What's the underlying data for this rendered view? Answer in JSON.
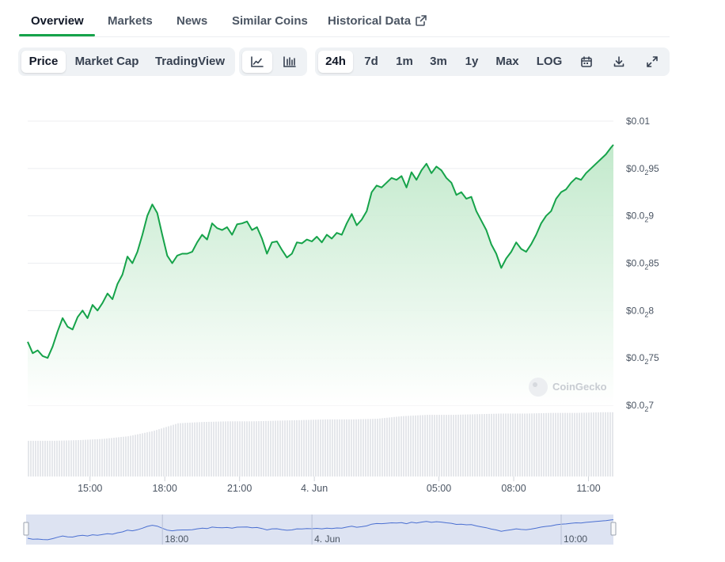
{
  "tabs": [
    {
      "label": "Overview"
    },
    {
      "label": "Markets"
    },
    {
      "label": "News"
    },
    {
      "label": "Similar Coins"
    },
    {
      "label": "Historical Data",
      "external": true
    }
  ],
  "chart_types": [
    {
      "label": "Price",
      "active": true
    },
    {
      "label": "Market Cap"
    },
    {
      "label": "TradingView"
    }
  ],
  "chart_styles": [
    {
      "icon": "line-chart-icon",
      "active": true
    },
    {
      "icon": "candlestick-chart-icon"
    }
  ],
  "ranges": [
    {
      "label": "24h",
      "active": true
    },
    {
      "label": "7d"
    },
    {
      "label": "1m"
    },
    {
      "label": "3m"
    },
    {
      "label": "1y"
    },
    {
      "label": "Max"
    },
    {
      "label": "LOG"
    }
  ],
  "range_tools": [
    {
      "icon": "calendar-icon"
    },
    {
      "icon": "download-icon"
    },
    {
      "icon": "fullscreen-icon"
    }
  ],
  "watermark": "CoinGecko",
  "colors": {
    "line": "#16a34a",
    "area_top": "#bfe8c9",
    "volume": "#e5e7eb",
    "navigator_bg": "#dde3f2",
    "navigator_line": "#4a6fd1"
  },
  "chart_data": {
    "type": "area",
    "y_tick_labels": [
      {
        "value": 0.01,
        "prefix": "$0.0",
        "sub": "",
        "suffix": "1"
      },
      {
        "value": 0.00995,
        "prefix": "$0.0",
        "sub": "2",
        "suffix": "95"
      },
      {
        "value": 0.0099,
        "prefix": "$0.0",
        "sub": "2",
        "suffix": "9"
      },
      {
        "value": 0.00985,
        "prefix": "$0.0",
        "sub": "2",
        "suffix": "85"
      },
      {
        "value": 0.0098,
        "prefix": "$0.0",
        "sub": "2",
        "suffix": "8"
      },
      {
        "value": 0.00975,
        "prefix": "$0.0",
        "sub": "2",
        "suffix": "75"
      },
      {
        "value": 0.0097,
        "prefix": "$0.0",
        "sub": "2",
        "suffix": "7"
      }
    ],
    "ylim": [
      0.0097,
      0.01
    ],
    "x_tick_labels": [
      {
        "label": "15:00",
        "hours": 2.5
      },
      {
        "label": "18:00",
        "hours": 5.5
      },
      {
        "label": "21:00",
        "hours": 8.5
      },
      {
        "label": "4. Jun",
        "hours": 11.5
      },
      {
        "label": "05:00",
        "hours": 16.5
      },
      {
        "label": "08:00",
        "hours": 19.5
      },
      {
        "label": "11:00",
        "hours": 22.5
      }
    ],
    "x_unit": "hours since start of window",
    "xlim": [
      0,
      23.5
    ],
    "price_series": [
      [
        0.0,
        0.009767
      ],
      [
        0.2,
        0.009755
      ],
      [
        0.4,
        0.009758
      ],
      [
        0.6,
        0.009752
      ],
      [
        0.8,
        0.00975
      ],
      [
        1.0,
        0.009762
      ],
      [
        1.2,
        0.009778
      ],
      [
        1.4,
        0.009792
      ],
      [
        1.6,
        0.009783
      ],
      [
        1.8,
        0.00978
      ],
      [
        2.0,
        0.009793
      ],
      [
        2.2,
        0.0098
      ],
      [
        2.4,
        0.009792
      ],
      [
        2.6,
        0.009806
      ],
      [
        2.8,
        0.0098
      ],
      [
        3.0,
        0.009808
      ],
      [
        3.2,
        0.009818
      ],
      [
        3.4,
        0.009812
      ],
      [
        3.6,
        0.009828
      ],
      [
        3.8,
        0.009838
      ],
      [
        4.0,
        0.009857
      ],
      [
        4.2,
        0.00985
      ],
      [
        4.4,
        0.009862
      ],
      [
        4.6,
        0.00988
      ],
      [
        4.8,
        0.0099
      ],
      [
        5.0,
        0.009912
      ],
      [
        5.2,
        0.009903
      ],
      [
        5.4,
        0.00988
      ],
      [
        5.6,
        0.009858
      ],
      [
        5.8,
        0.00985
      ],
      [
        6.0,
        0.009858
      ],
      [
        6.2,
        0.00986
      ],
      [
        6.4,
        0.00986
      ],
      [
        6.6,
        0.009862
      ],
      [
        6.8,
        0.009872
      ],
      [
        7.0,
        0.00988
      ],
      [
        7.2,
        0.009875
      ],
      [
        7.4,
        0.009892
      ],
      [
        7.6,
        0.009887
      ],
      [
        7.8,
        0.009885
      ],
      [
        8.0,
        0.009888
      ],
      [
        8.2,
        0.00988
      ],
      [
        8.4,
        0.009891
      ],
      [
        8.6,
        0.009892
      ],
      [
        8.8,
        0.009894
      ],
      [
        9.0,
        0.009885
      ],
      [
        9.2,
        0.009888
      ],
      [
        9.4,
        0.009876
      ],
      [
        9.6,
        0.00986
      ],
      [
        9.8,
        0.009872
      ],
      [
        10.0,
        0.009873
      ],
      [
        10.2,
        0.009864
      ],
      [
        10.4,
        0.009856
      ],
      [
        10.6,
        0.00986
      ],
      [
        10.8,
        0.009872
      ],
      [
        11.0,
        0.009871
      ],
      [
        11.2,
        0.009875
      ],
      [
        11.4,
        0.009873
      ],
      [
        11.6,
        0.009878
      ],
      [
        11.8,
        0.009872
      ],
      [
        12.0,
        0.00988
      ],
      [
        12.2,
        0.009876
      ],
      [
        12.4,
        0.009882
      ],
      [
        12.6,
        0.00988
      ],
      [
        12.8,
        0.009892
      ],
      [
        13.0,
        0.009902
      ],
      [
        13.2,
        0.00989
      ],
      [
        13.4,
        0.009896
      ],
      [
        13.6,
        0.009905
      ],
      [
        13.8,
        0.009925
      ],
      [
        14.0,
        0.009932
      ],
      [
        14.2,
        0.00993
      ],
      [
        14.4,
        0.009935
      ],
      [
        14.6,
        0.00994
      ],
      [
        14.8,
        0.009938
      ],
      [
        15.0,
        0.009942
      ],
      [
        15.2,
        0.00993
      ],
      [
        15.4,
        0.009946
      ],
      [
        15.6,
        0.009938
      ],
      [
        15.8,
        0.009948
      ],
      [
        16.0,
        0.009955
      ],
      [
        16.2,
        0.009945
      ],
      [
        16.4,
        0.009952
      ],
      [
        16.6,
        0.009948
      ],
      [
        16.8,
        0.00994
      ],
      [
        17.0,
        0.009935
      ],
      [
        17.2,
        0.009922
      ],
      [
        17.4,
        0.009925
      ],
      [
        17.6,
        0.009918
      ],
      [
        17.8,
        0.00992
      ],
      [
        18.0,
        0.009905
      ],
      [
        18.2,
        0.009895
      ],
      [
        18.4,
        0.009885
      ],
      [
        18.6,
        0.00987
      ],
      [
        18.8,
        0.00986
      ],
      [
        19.0,
        0.009845
      ],
      [
        19.2,
        0.009855
      ],
      [
        19.4,
        0.009862
      ],
      [
        19.6,
        0.009872
      ],
      [
        19.8,
        0.009865
      ],
      [
        20.0,
        0.009862
      ],
      [
        20.2,
        0.00987
      ],
      [
        20.4,
        0.00988
      ],
      [
        20.6,
        0.009892
      ],
      [
        20.8,
        0.0099
      ],
      [
        21.0,
        0.009905
      ],
      [
        21.2,
        0.009918
      ],
      [
        21.4,
        0.009925
      ],
      [
        21.6,
        0.009928
      ],
      [
        21.8,
        0.009935
      ],
      [
        22.0,
        0.00994
      ],
      [
        22.2,
        0.009938
      ],
      [
        22.4,
        0.009945
      ],
      [
        22.6,
        0.00995
      ],
      [
        22.8,
        0.009955
      ],
      [
        23.0,
        0.00996
      ],
      [
        23.2,
        0.009965
      ],
      [
        23.4,
        0.009972
      ],
      [
        23.5,
        0.009975
      ]
    ],
    "volume_level_note_free": true,
    "volume_series": [
      [
        0.0,
        0.55
      ],
      [
        1.0,
        0.55
      ],
      [
        2.0,
        0.56
      ],
      [
        3.0,
        0.58
      ],
      [
        4.0,
        0.62
      ],
      [
        4.5,
        0.66
      ],
      [
        5.0,
        0.7
      ],
      [
        5.5,
        0.76
      ],
      [
        6.0,
        0.82
      ],
      [
        7.0,
        0.84
      ],
      [
        8.0,
        0.85
      ],
      [
        9.0,
        0.85
      ],
      [
        10.0,
        0.86
      ],
      [
        11.0,
        0.87
      ],
      [
        12.0,
        0.88
      ],
      [
        13.0,
        0.88
      ],
      [
        14.0,
        0.89
      ],
      [
        15.0,
        0.93
      ],
      [
        16.0,
        0.95
      ],
      [
        17.0,
        0.95
      ],
      [
        18.0,
        0.96
      ],
      [
        19.0,
        0.97
      ],
      [
        20.0,
        0.97
      ],
      [
        21.0,
        0.98
      ],
      [
        22.0,
        0.98
      ],
      [
        23.0,
        0.99
      ],
      [
        23.5,
        0.99
      ]
    ],
    "navigator_tick_labels": [
      {
        "label": "18:00",
        "hours": 5.5
      },
      {
        "label": "4. Jun",
        "hours": 11.5
      },
      {
        "label": "10:00",
        "hours": 21.5
      }
    ]
  }
}
